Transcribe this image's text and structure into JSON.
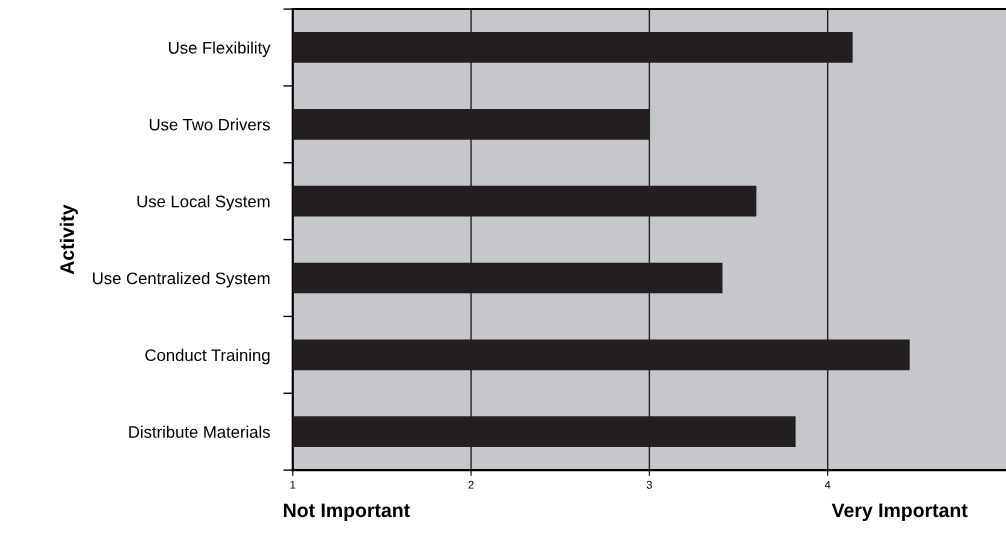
{
  "chart_data": {
    "type": "bar",
    "orientation": "horizontal",
    "ylabel": "Activity",
    "categories": [
      "Use Flexibility",
      "Use Two Drivers",
      "Use Local System",
      "Use Centralized System",
      "Conduct Training",
      "Distribute Materials"
    ],
    "values": [
      4.14,
      3.0,
      3.6,
      3.41,
      4.46,
      3.82
    ],
    "color": "#231f20",
    "xlim": [
      1,
      5
    ],
    "xticks": [
      1,
      2,
      3,
      4
    ],
    "grid": "x",
    "annotations": [
      "Not Important",
      "Very Important"
    ]
  }
}
